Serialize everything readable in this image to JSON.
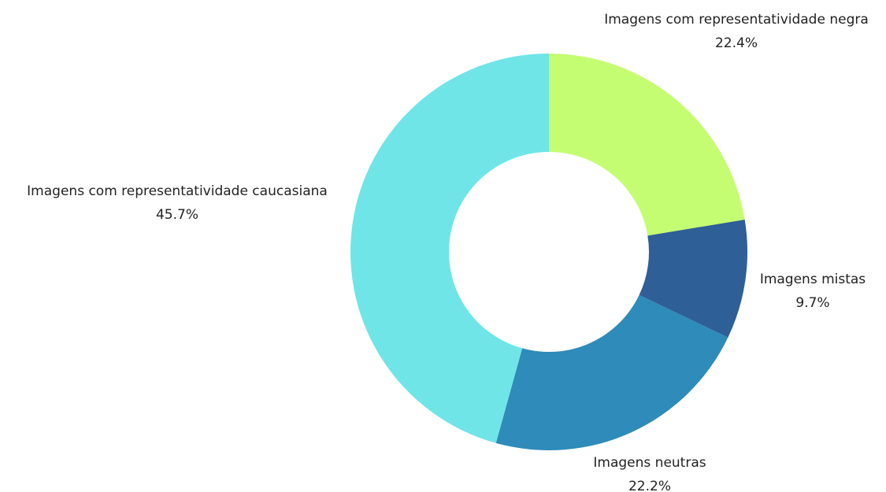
{
  "chart_data": {
    "type": "donut",
    "categories": [
      "Imagens com representatividade negra",
      "Imagens mistas",
      "Imagens neutras",
      "Imagens com representatividade caucasiana"
    ],
    "values": [
      22.4,
      9.7,
      22.2,
      45.7
    ],
    "value_labels": [
      "22.4%",
      "9.7%",
      "22.2%",
      "45.7%"
    ],
    "colors": [
      "#c5fd72",
      "#2e5f96",
      "#2e8bba",
      "#6fe5e8"
    ]
  }
}
